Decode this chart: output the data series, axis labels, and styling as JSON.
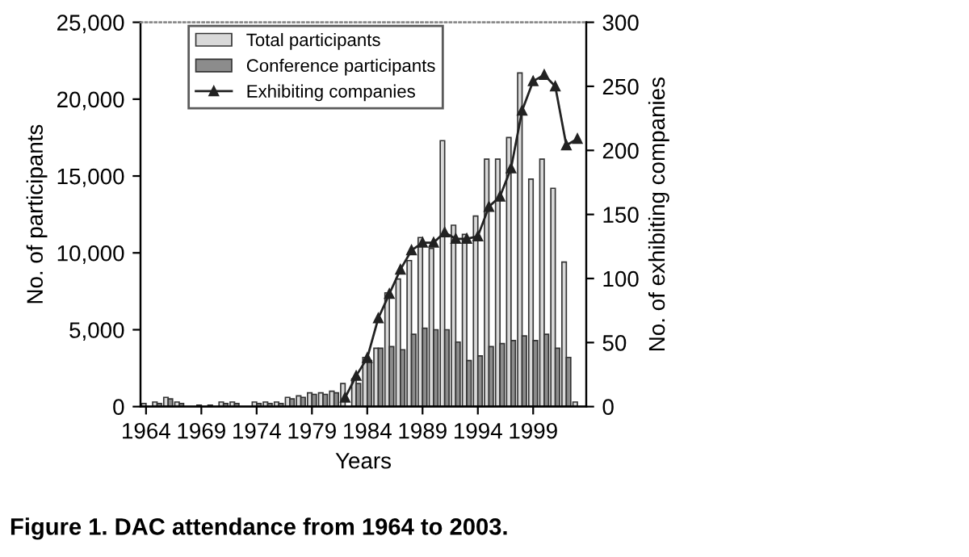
{
  "chart_data": {
    "type": "bar",
    "title": "Figure 1. DAC attendance from 1964 to 2003.",
    "xlabel": "Years",
    "ylabel": "No. of participants",
    "y2label": "No. of exhibiting companies",
    "x": [
      1964,
      1965,
      1966,
      1967,
      1968,
      1969,
      1970,
      1971,
      1972,
      1973,
      1974,
      1975,
      1976,
      1977,
      1978,
      1979,
      1980,
      1981,
      1982,
      1983,
      1984,
      1985,
      1986,
      1987,
      1988,
      1989,
      1990,
      1991,
      1992,
      1993,
      1994,
      1995,
      1996,
      1997,
      1998,
      1999,
      2000,
      2001,
      2002,
      2003
    ],
    "series": [
      {
        "name": "Total participants",
        "color": "#d9d9d9",
        "values": [
          200,
          300,
          600,
          300,
          null,
          100,
          100,
          300,
          300,
          null,
          300,
          300,
          300,
          600,
          700,
          900,
          900,
          1000,
          1500,
          1800,
          3200,
          3800,
          7400,
          8300,
          9500,
          11000,
          10300,
          17300,
          11800,
          11200,
          12400,
          16100,
          16100,
          17500,
          21700,
          14800,
          16100,
          14200,
          9400,
          300
        ]
      },
      {
        "name": "Conference participants",
        "color": "#8c8c8c",
        "values": [
          null,
          200,
          500,
          200,
          null,
          null,
          null,
          200,
          200,
          null,
          200,
          200,
          200,
          500,
          600,
          800,
          800,
          900,
          null,
          1500,
          3000,
          3800,
          3900,
          3700,
          4700,
          5100,
          5000,
          5000,
          4200,
          3000,
          3300,
          3900,
          4100,
          4300,
          4600,
          4300,
          4700,
          3800,
          3200,
          null
        ]
      },
      {
        "name": "Exhibiting companies",
        "type": "line",
        "axis": "y2",
        "color": "#222222",
        "values": [
          null,
          null,
          null,
          null,
          null,
          null,
          null,
          null,
          null,
          null,
          null,
          null,
          null,
          null,
          null,
          null,
          null,
          null,
          7,
          24,
          38,
          69,
          88,
          107,
          122,
          128,
          128,
          136,
          131,
          131,
          133,
          156,
          164,
          186,
          231,
          254,
          259,
          250,
          204,
          209
        ]
      }
    ],
    "xlim": [
      1963.5,
      2003.8
    ],
    "xticks": [
      1964,
      1969,
      1974,
      1979,
      1984,
      1989,
      1994,
      1999
    ],
    "ylim": [
      0,
      25000
    ],
    "yticks": [
      {
        "value": 0,
        "label": "0"
      },
      {
        "value": 5000,
        "label": "5,000"
      },
      {
        "value": 10000,
        "label": "10,000"
      },
      {
        "value": 15000,
        "label": "15,000"
      },
      {
        "value": 20000,
        "label": "20,000"
      },
      {
        "value": 25000,
        "label": "25,000"
      }
    ],
    "y2lim": [
      0,
      300
    ],
    "y2ticks": [
      0,
      50,
      100,
      150,
      200,
      250,
      300
    ],
    "marker": "triangle",
    "line_style": "solid",
    "legend": "top left",
    "grid": false
  }
}
